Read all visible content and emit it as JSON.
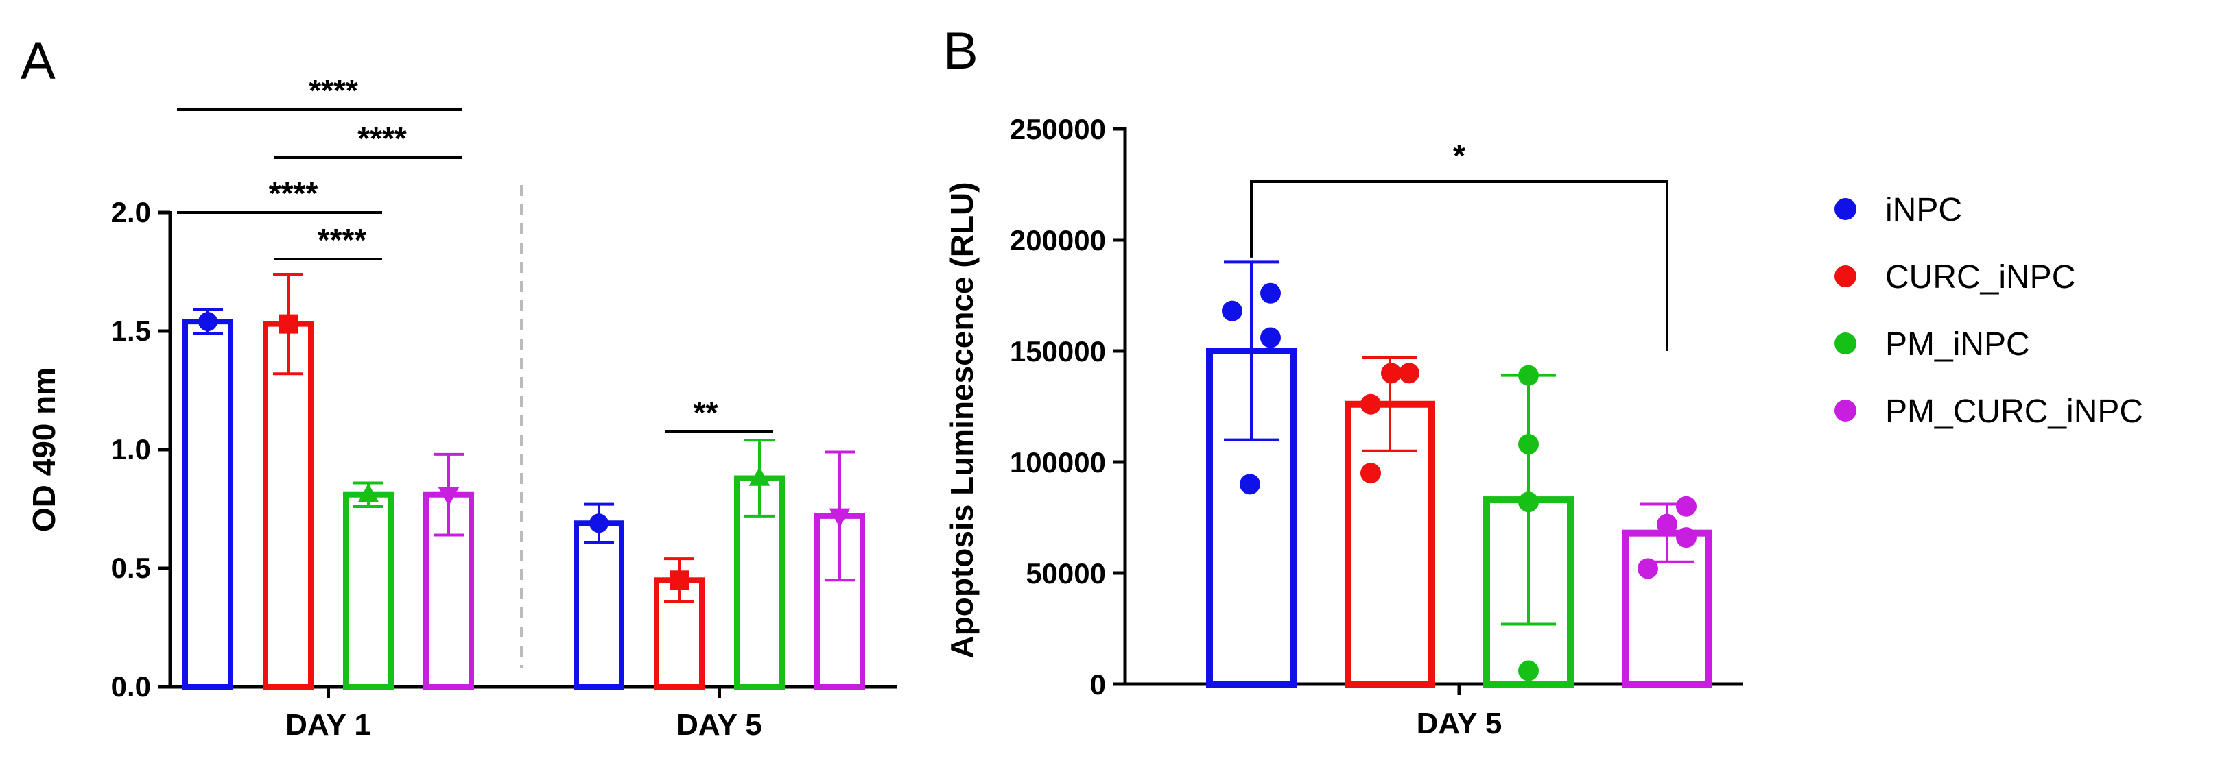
{
  "chart_data": [
    {
      "panel": "A",
      "type": "bar",
      "ylabel": "OD 490 nm",
      "ylim": [
        0,
        2.0
      ],
      "yticks": [
        "0.0",
        "0.5",
        "1.0",
        "1.5",
        "2.0"
      ],
      "categories": [
        "DAY 1",
        "DAY 5"
      ],
      "series": [
        {
          "name": "iNPC",
          "color": "#1010e8",
          "marker": "circle",
          "values": [
            1.54,
            0.69
          ],
          "err": [
            0.05,
            0.08
          ]
        },
        {
          "name": "CURC_iNPC",
          "color": "#f01010",
          "marker": "square",
          "values": [
            1.53,
            0.45
          ],
          "err": [
            0.21,
            0.09
          ]
        },
        {
          "name": "PM_iNPC",
          "color": "#16c016",
          "marker": "triangle-up",
          "values": [
            0.81,
            0.88
          ],
          "err": [
            0.05,
            0.16
          ]
        },
        {
          "name": "PM_CURC_iNPC",
          "color": "#c81ee0",
          "marker": "triangle-down",
          "values": [
            0.81,
            0.72
          ],
          "err": [
            0.17,
            0.27
          ]
        }
      ],
      "annotations": [
        {
          "group": 0,
          "from": 0,
          "to": 3,
          "y": 1.98,
          "label": "****"
        },
        {
          "group": 0,
          "from": 1,
          "to": 3,
          "y": 1.78,
          "label": "****"
        },
        {
          "group": 0,
          "from": 0,
          "to": 2,
          "y": 2.02,
          "label": "****"
        },
        {
          "group": 0,
          "from": 1,
          "to": 2,
          "y": 1.8,
          "label": "****"
        },
        {
          "group": 1,
          "from": 1,
          "to": 2,
          "y": 1.08,
          "label": "**"
        }
      ]
    },
    {
      "panel": "B",
      "type": "bar",
      "ylabel": "Apoptosis Luminescence (RLU)",
      "ylim": [
        0,
        250000
      ],
      "yticks": [
        "0",
        "50000",
        "100000",
        "150000",
        "200000",
        "250000"
      ],
      "categories": [
        "DAY 5"
      ],
      "series": [
        {
          "name": "iNPC",
          "color": "#1010e8",
          "value": 150000,
          "err": 40000,
          "points": [
            90000,
            168000,
            176000,
            156000
          ]
        },
        {
          "name": "CURC_iNPC",
          "color": "#f01010",
          "value": 126000,
          "err": 21000,
          "points": [
            95000,
            140000,
            140000,
            126000
          ]
        },
        {
          "name": "PM_iNPC",
          "color": "#16c016",
          "value": 83000,
          "err": 56000,
          "points": [
            6000,
            82000,
            108000,
            139000
          ]
        },
        {
          "name": "PM_CURC_iNPC",
          "color": "#c81ee0",
          "value": 68000,
          "err": 13000,
          "points": [
            52000,
            80000,
            72000,
            66000
          ]
        }
      ],
      "annotations": [
        {
          "from": 0,
          "to": 3,
          "y": 224000,
          "label": "*"
        }
      ]
    }
  ],
  "legend": [
    {
      "label": "iNPC",
      "color": "#1010e8"
    },
    {
      "label": "CURC_iNPC",
      "color": "#f01010"
    },
    {
      "label": "PM_iNPC",
      "color": "#16c016"
    },
    {
      "label": "PM_CURC_iNPC",
      "color": "#c81ee0"
    }
  ]
}
